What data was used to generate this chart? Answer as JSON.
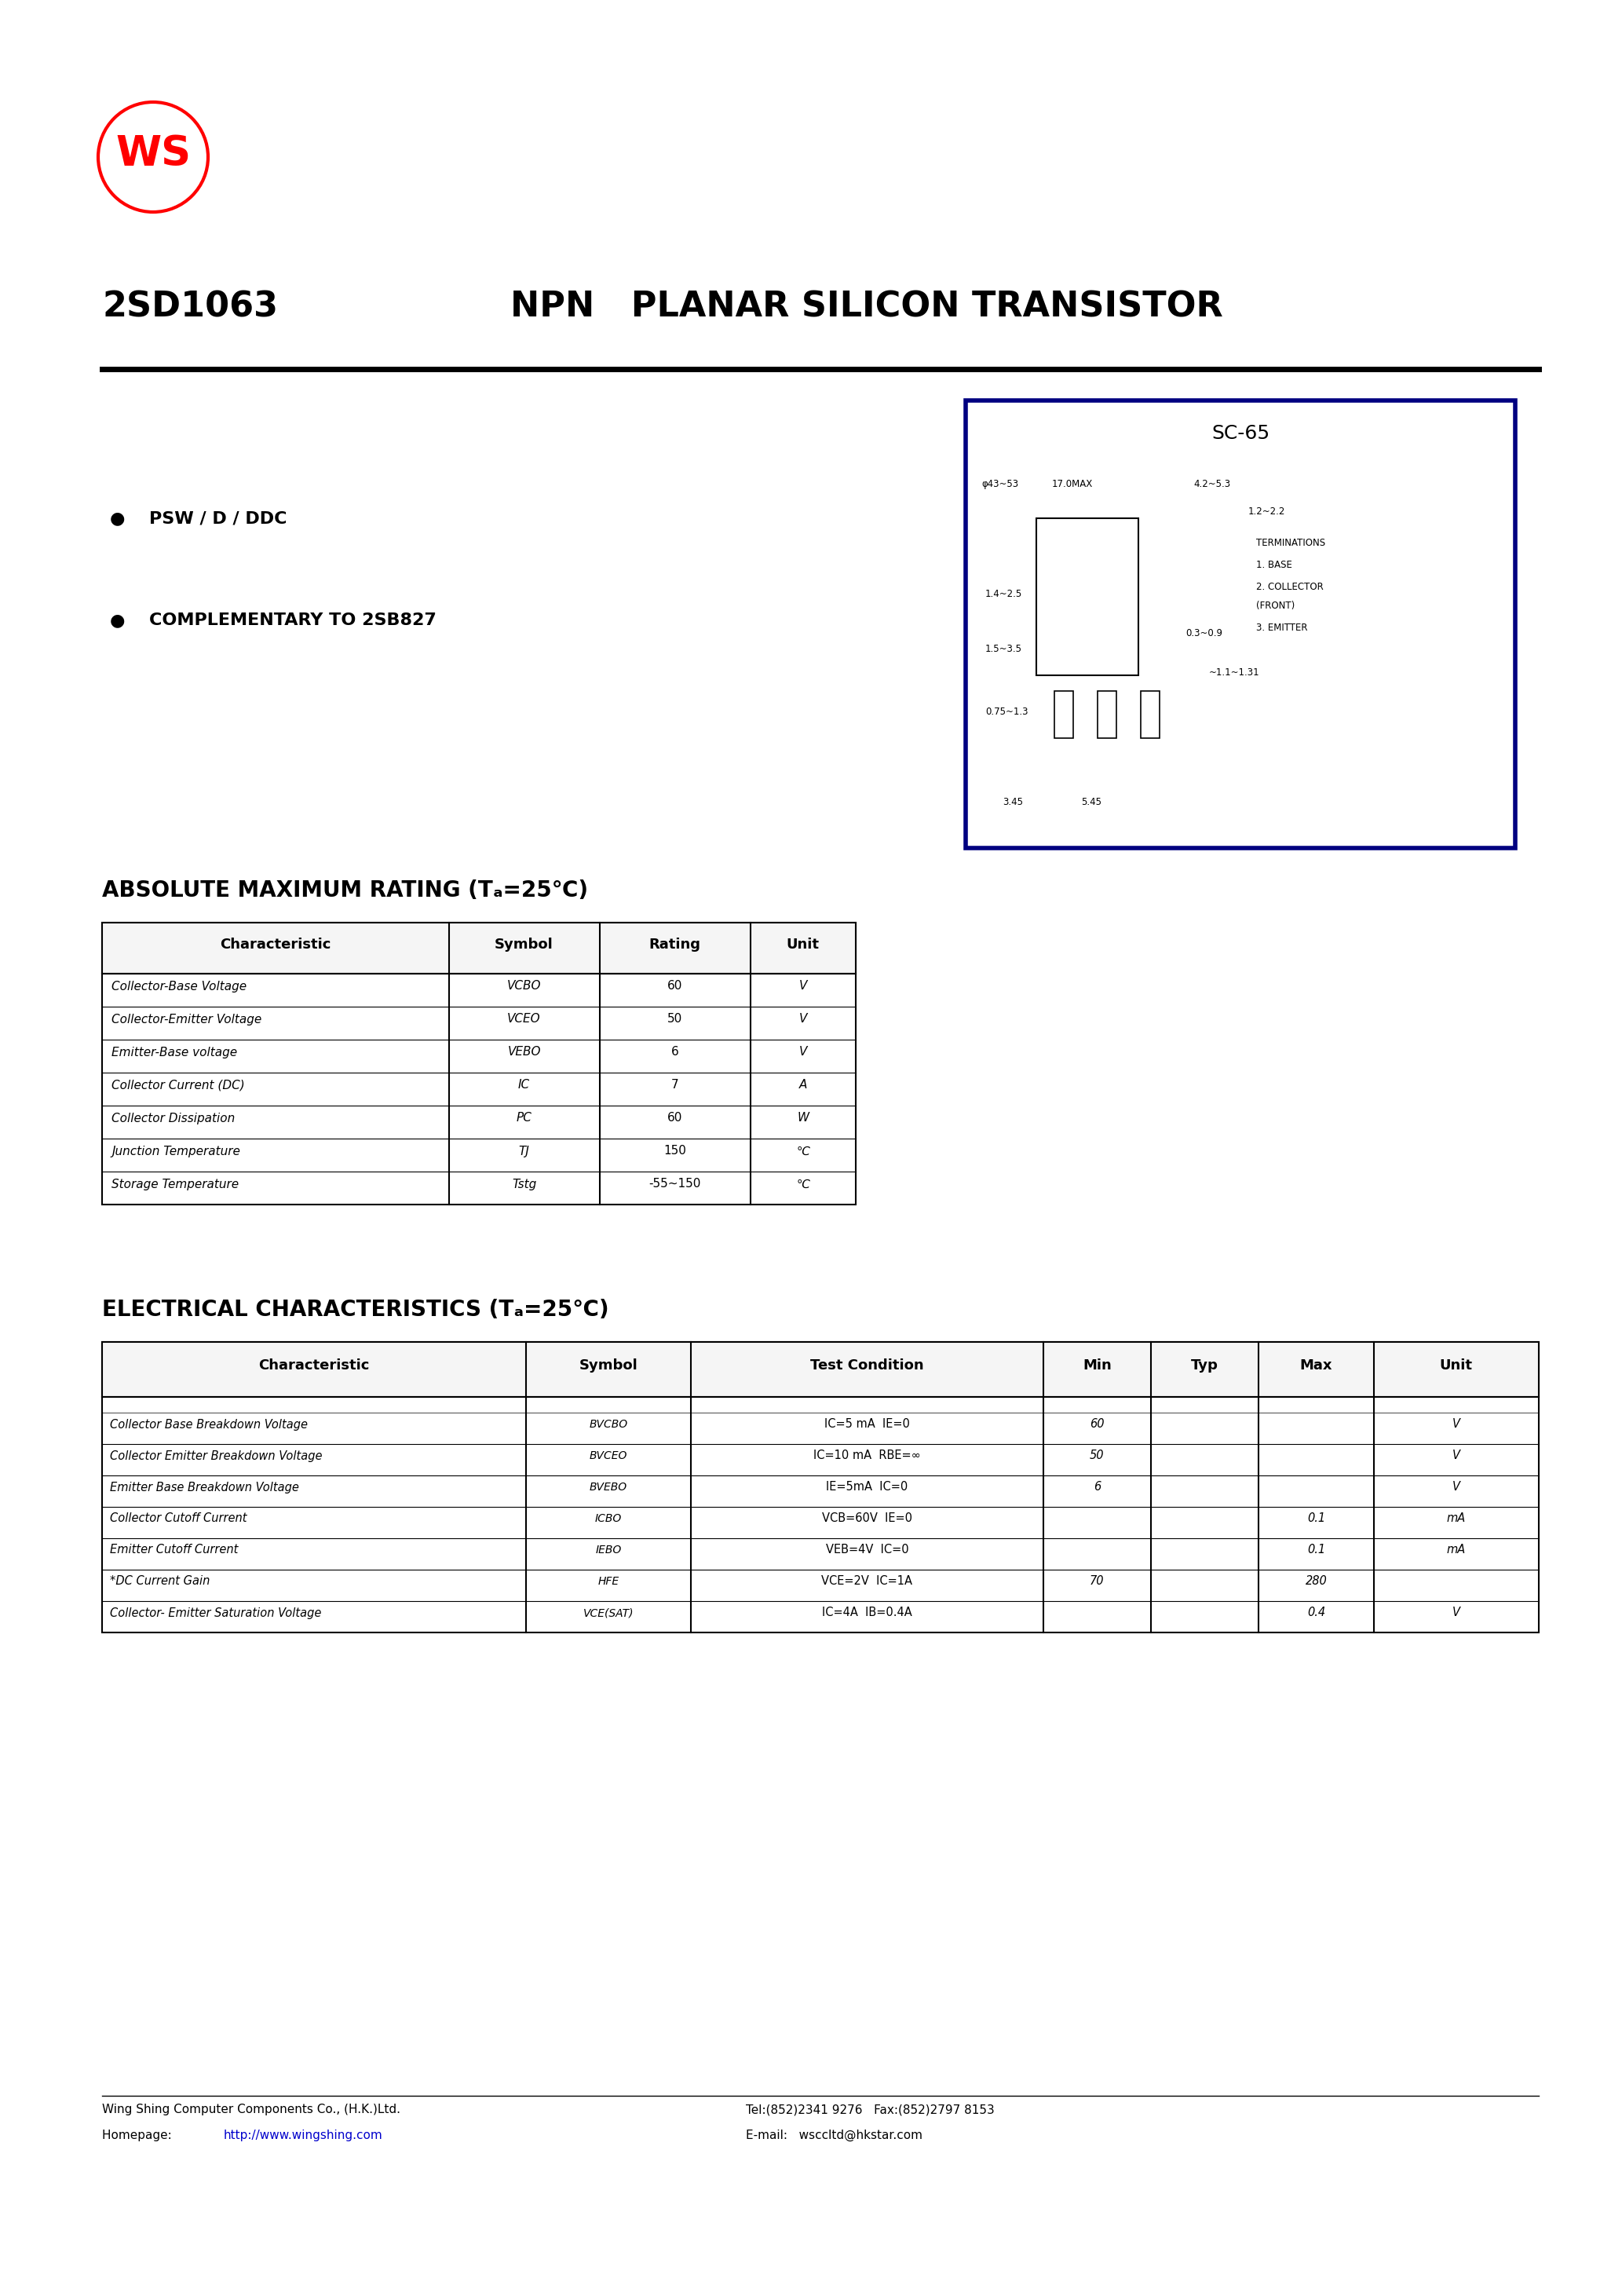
{
  "page_width": 20.66,
  "page_height": 29.24,
  "background_color": "#ffffff",
  "title_part": "2SD1063",
  "title_desc": "NPN   PLANAR SILICON TRANSISTOR",
  "features": [
    "PSW / D / DDC",
    "COMPLEMENTARY TO 2SB827"
  ],
  "abs_max_title": "ABSOLUTE MAXIMUM RATING (Tₐ=25℃)",
  "abs_max_headers": [
    "Characteristic",
    "Symbol",
    "Rating",
    "Unit"
  ],
  "abs_max_rows": [
    [
      "Collector-Base Voltage",
      "VCBO",
      "60",
      "V"
    ],
    [
      "Collector-Emitter Voltage",
      "VCEO",
      "50",
      "V"
    ],
    [
      "Emitter-Base voltage",
      "VEBO",
      "6",
      "V"
    ],
    [
      "Collector Current (DC)",
      "IC",
      "7",
      "A"
    ],
    [
      "Collector Dissipation",
      "PC",
      "60",
      "W"
    ],
    [
      "Junction Temperature",
      "TJ",
      "150",
      "℃"
    ],
    [
      "Storage Temperature",
      "Tstg",
      "-55~150",
      "℃"
    ]
  ],
  "elec_char_title": "ELECTRICAL CHARACTERISTICS (Tₐ=25℃)",
  "elec_headers": [
    "Characteristic",
    "Symbol",
    "Test Condition",
    "Min",
    "Typ",
    "Max",
    "Unit"
  ],
  "elec_rows": [
    [
      "Collector Base Breakdown Voltage",
      "BVCBO",
      "IC=5 mA  IE=0",
      "60",
      "",
      "",
      "V"
    ],
    [
      "Collector Emitter Breakdown Voltage",
      "BVCEO",
      "IC=10 mA  RBE=∞",
      "50",
      "",
      "",
      "V"
    ],
    [
      "Emitter Base Breakdown Voltage",
      "BVEBO",
      "IE=5mA  IC=0",
      "6",
      "",
      "",
      "V"
    ],
    [
      "Collector Cutoff Current",
      "ICBO",
      "VCB=60V  IE=0",
      "",
      "",
      "0.1",
      "mA"
    ],
    [
      "Emitter Cutoff Current",
      "IEBO",
      "VEB=4V  IC=0",
      "",
      "",
      "0.1",
      "mA"
    ],
    [
      "*DC Current Gain",
      "HFE",
      "VCE=2V  IC=1A",
      "70",
      "",
      "280",
      ""
    ],
    [
      "Collector- Emitter Saturation Voltage",
      "VCE(SAT)",
      "IC=4A  IB=0.4A",
      "",
      "",
      "0.4",
      "V"
    ]
  ],
  "package_label": "SC-65",
  "footer_left1": "Wing Shing Computer Components Co., (H.K.)Ltd.",
  "footer_left2": "Homepage:  http://www.wingshing.com",
  "footer_right1": "Tel:(852)2341 9276   Fax:(852)2797 8153",
  "footer_right2": "E-mail:   wsccltd@hkstar.com",
  "border_color": "#000080",
  "table_border_color": "#000000",
  "link_color": "#0000cc"
}
